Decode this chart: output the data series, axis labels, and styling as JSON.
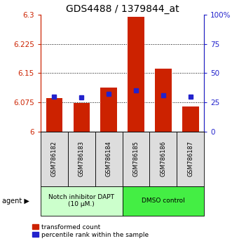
{
  "title": "GDS4488 / 1379844_at",
  "categories": [
    "GSM786182",
    "GSM786183",
    "GSM786184",
    "GSM786185",
    "GSM786186",
    "GSM786187"
  ],
  "red_values": [
    6.085,
    6.073,
    6.113,
    6.295,
    6.162,
    6.065
  ],
  "blue_values_pct": [
    30,
    29,
    32,
    35,
    31,
    30
  ],
  "ymin": 6.0,
  "ymax": 6.3,
  "yticks": [
    6.0,
    6.075,
    6.15,
    6.225,
    6.3
  ],
  "ytick_labels": [
    "6",
    "6.075",
    "6.15",
    "6.225",
    "6.3"
  ],
  "right_yticks": [
    0,
    25,
    50,
    75,
    100
  ],
  "right_ytick_labels": [
    "0",
    "25",
    "50",
    "75",
    "100%"
  ],
  "red_color": "#cc2200",
  "blue_color": "#2222cc",
  "bar_width": 0.6,
  "group1_label": "Notch inhibitor DAPT\n(10 μM.)",
  "group2_label": "DMSO control",
  "group1_color": "#ccffcc",
  "group2_color": "#44ee44",
  "legend_red_label": "transformed count",
  "legend_blue_label": "percentile rank within the sample",
  "agent_label": "agent",
  "title_fontsize": 10,
  "tick_fontsize": 7.5,
  "label_fontsize": 7
}
